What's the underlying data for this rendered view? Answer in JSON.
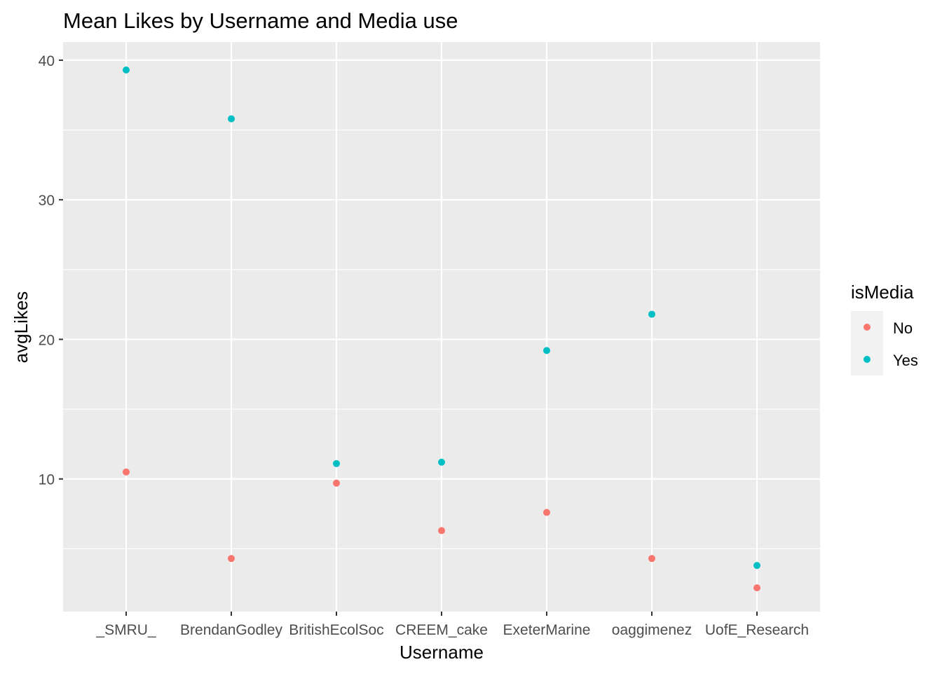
{
  "chart_data": {
    "type": "scatter",
    "title": "Mean Likes by Username and Media use",
    "xlabel": "Username",
    "ylabel": "avgLikes",
    "categories": [
      "_SMRU_",
      "BrendanGodley",
      "BritishEcolSoc",
      "CREEM_cake",
      "ExeterMarine",
      "oaggimenez",
      "UofE_Research"
    ],
    "yticks": [
      10,
      20,
      30,
      40
    ],
    "ylim": [
      0.5,
      41.3
    ],
    "grid": true,
    "legend": {
      "title": "isMedia",
      "placement": "right",
      "entries": [
        "No",
        "Yes"
      ]
    },
    "series": [
      {
        "name": "No",
        "color": "#F8766D",
        "values": [
          10.5,
          4.3,
          9.7,
          6.3,
          7.6,
          4.3,
          2.2
        ]
      },
      {
        "name": "Yes",
        "color": "#00BFC4",
        "values": [
          39.3,
          35.8,
          11.1,
          11.2,
          19.2,
          21.8,
          3.8
        ]
      }
    ]
  }
}
